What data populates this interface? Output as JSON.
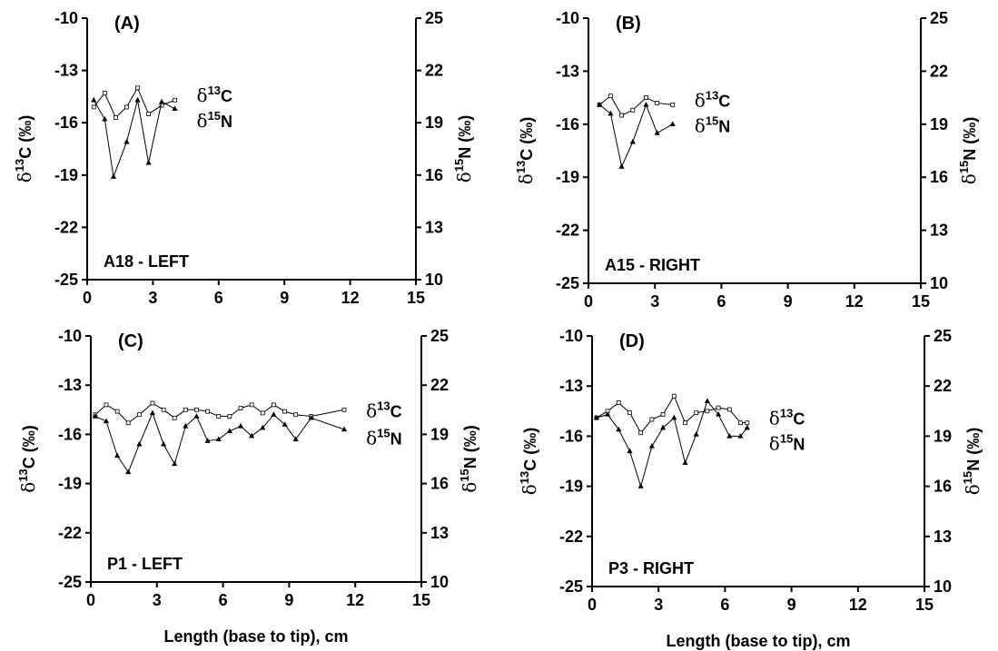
{
  "chart_data": [
    {
      "type": "line",
      "panel_label": "(A)",
      "sample_label": "A18 - LEFT",
      "xlabel": "",
      "ylabel_left": "δ13C (‰)",
      "ylabel_right": "δ15N (‰)",
      "xlim": [
        0,
        15
      ],
      "ylim_left": [
        -25,
        -10
      ],
      "ylim_right": [
        10,
        25
      ],
      "xticks": [
        "0",
        "3",
        "6",
        "9",
        "12",
        "15"
      ],
      "yticks_left": [
        "-10",
        "-13",
        "-16",
        "-19",
        "-22",
        "-25"
      ],
      "yticks_right": [
        "25",
        "22",
        "19",
        "16",
        "13",
        "10"
      ],
      "series": [
        {
          "name": "δ13C",
          "axis": "left",
          "marker": "square",
          "x": [
            0.3,
            0.8,
            1.3,
            1.8,
            2.3,
            2.8,
            3.4,
            4.0
          ],
          "y": [
            -15.1,
            -14.3,
            -15.7,
            -15.1,
            -14.0,
            -15.5,
            -15.0,
            -14.7
          ]
        },
        {
          "name": "δ15N",
          "axis": "right",
          "marker": "triangle",
          "x": [
            0.3,
            0.8,
            1.2,
            1.8,
            2.3,
            2.8,
            3.4,
            4.0
          ],
          "y": [
            20.3,
            19.2,
            15.9,
            17.9,
            20.3,
            16.7,
            20.2,
            19.8
          ]
        }
      ]
    },
    {
      "type": "line",
      "panel_label": "(B)",
      "sample_label": "A15 - RIGHT",
      "xlabel": "",
      "ylabel_left": "δ13C (‰)",
      "ylabel_right": "δ15N (‰)",
      "xlim": [
        0,
        15
      ],
      "ylim_left": [
        -25,
        -10
      ],
      "ylim_right": [
        10,
        25
      ],
      "xticks": [
        "0",
        "3",
        "6",
        "9",
        "12",
        "15"
      ],
      "yticks_left": [
        "-10",
        "-13",
        "-16",
        "-19",
        "-22",
        "-25"
      ],
      "yticks_right": [
        "25",
        "22",
        "19",
        "16",
        "13",
        "10"
      ],
      "series": [
        {
          "name": "δ13C",
          "axis": "left",
          "marker": "square",
          "x": [
            0.5,
            1.0,
            1.5,
            2.0,
            2.6,
            3.1,
            3.8
          ],
          "y": [
            -14.9,
            -14.4,
            -15.5,
            -15.2,
            -14.5,
            -14.8,
            -14.9
          ]
        },
        {
          "name": "δ15N",
          "axis": "right",
          "marker": "triangle",
          "x": [
            0.5,
            1.0,
            1.5,
            2.0,
            2.6,
            3.1,
            3.8
          ],
          "y": [
            20.1,
            19.6,
            16.6,
            18.0,
            20.1,
            18.5,
            19.0
          ]
        }
      ]
    },
    {
      "type": "line",
      "panel_label": "(C)",
      "sample_label": "P1 - LEFT",
      "xlabel": "Length (base to tip), cm",
      "ylabel_left": "δ13C (‰)",
      "ylabel_right": "δ15N (‰)",
      "xlim": [
        0,
        15
      ],
      "ylim_left": [
        -25,
        -10
      ],
      "ylim_right": [
        10,
        25
      ],
      "xticks": [
        "0",
        "3",
        "6",
        "9",
        "12",
        "15"
      ],
      "yticks_left": [
        "-10",
        "-13",
        "-16",
        "-19",
        "-22",
        "-25"
      ],
      "yticks_right": [
        "25",
        "22",
        "19",
        "16",
        "13",
        "10"
      ],
      "series": [
        {
          "name": "δ13C",
          "axis": "left",
          "marker": "square",
          "x": [
            0.2,
            0.7,
            1.2,
            1.7,
            2.2,
            2.8,
            3.3,
            3.8,
            4.3,
            4.8,
            5.3,
            5.8,
            6.3,
            6.8,
            7.3,
            7.8,
            8.3,
            8.8,
            9.3,
            10.0,
            11.5
          ],
          "y": [
            -14.8,
            -14.2,
            -14.6,
            -15.3,
            -14.8,
            -14.1,
            -14.5,
            -15.0,
            -14.5,
            -14.5,
            -14.6,
            -14.9,
            -14.9,
            -14.4,
            -14.2,
            -14.7,
            -14.2,
            -14.6,
            -14.8,
            -14.9,
            -14.5
          ]
        },
        {
          "name": "δ15N",
          "axis": "right",
          "marker": "triangle",
          "x": [
            0.2,
            0.7,
            1.2,
            1.7,
            2.2,
            2.8,
            3.3,
            3.8,
            4.3,
            4.8,
            5.3,
            5.8,
            6.3,
            6.8,
            7.3,
            7.8,
            8.3,
            8.8,
            9.3,
            10.0,
            11.5
          ],
          "y": [
            20.1,
            19.8,
            17.7,
            16.7,
            18.4,
            20.3,
            18.4,
            17.2,
            19.5,
            20.1,
            18.6,
            18.7,
            19.2,
            19.5,
            18.9,
            19.4,
            20.2,
            19.6,
            18.7,
            20.0,
            19.3
          ]
        }
      ]
    },
    {
      "type": "line",
      "panel_label": "(D)",
      "sample_label": "P3 - RIGHT",
      "xlabel": "Length (base to tip), cm",
      "ylabel_left": "δ13C (‰)",
      "ylabel_right": "δ15N (‰)",
      "xlim": [
        0,
        15
      ],
      "ylim_left": [
        -25,
        -10
      ],
      "ylim_right": [
        10,
        25
      ],
      "xticks": [
        "0",
        "3",
        "6",
        "9",
        "12",
        "15"
      ],
      "yticks_left": [
        "-10",
        "-13",
        "-16",
        "-19",
        "-22",
        "-25"
      ],
      "yticks_right": [
        "25",
        "22",
        "19",
        "16",
        "13",
        "10"
      ],
      "series": [
        {
          "name": "δ13C",
          "axis": "left",
          "marker": "square",
          "x": [
            0.2,
            0.7,
            1.2,
            1.7,
            2.2,
            2.7,
            3.2,
            3.7,
            4.2,
            4.7,
            5.2,
            5.7,
            6.2,
            6.7,
            7.0
          ],
          "y": [
            -14.9,
            -14.5,
            -14.0,
            -14.6,
            -15.8,
            -15.0,
            -14.7,
            -13.6,
            -15.2,
            -14.6,
            -14.5,
            -14.3,
            -14.4,
            -15.2,
            -15.2
          ]
        },
        {
          "name": "δ15N",
          "axis": "right",
          "marker": "triangle",
          "x": [
            0.2,
            0.7,
            1.2,
            1.7,
            2.2,
            2.7,
            3.2,
            3.7,
            4.2,
            4.7,
            5.2,
            5.7,
            6.2,
            6.7,
            7.0
          ],
          "y": [
            20.1,
            20.3,
            19.4,
            18.1,
            16.0,
            18.4,
            19.5,
            20.1,
            17.4,
            19.1,
            21.1,
            20.3,
            19.0,
            19.0,
            19.5
          ]
        }
      ]
    }
  ]
}
